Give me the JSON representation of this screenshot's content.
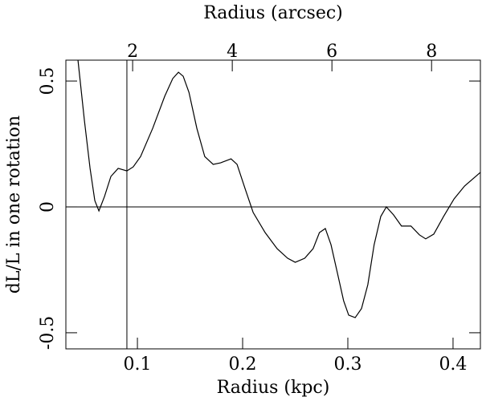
{
  "chart_data": {
    "type": "line",
    "xlabel": "Radius (kpc)",
    "x2label": "Radius (arcsec)",
    "ylabel": "dL/L in one rotation",
    "x": [
      0.0435,
      0.0496,
      0.055,
      0.0595,
      0.0634,
      0.0687,
      0.0748,
      0.0817,
      0.09,
      0.096,
      0.103,
      0.1145,
      0.126,
      0.1336,
      0.139,
      0.1435,
      0.149,
      0.1565,
      0.164,
      0.172,
      0.179,
      0.189,
      0.1947,
      0.2023,
      0.21,
      0.2214,
      0.2328,
      0.2428,
      0.25,
      0.259,
      0.267,
      0.273,
      0.2786,
      0.284,
      0.29,
      0.296,
      0.3008,
      0.307,
      0.313,
      0.319,
      0.325,
      0.3313,
      0.3366,
      0.3435,
      0.351,
      0.36,
      0.368,
      0.374,
      0.3817,
      0.391,
      0.401,
      0.411,
      0.426
    ],
    "values": [
      0.583,
      0.344,
      0.153,
      0.025,
      -0.016,
      0.041,
      0.121,
      0.153,
      0.143,
      0.159,
      0.2,
      0.312,
      0.44,
      0.51,
      0.535,
      0.519,
      0.455,
      0.312,
      0.2,
      0.169,
      0.175,
      0.191,
      0.169,
      0.073,
      -0.022,
      -0.102,
      -0.166,
      -0.204,
      -0.22,
      -0.204,
      -0.166,
      -0.102,
      -0.086,
      -0.15,
      -0.261,
      -0.373,
      -0.43,
      -0.44,
      -0.404,
      -0.309,
      -0.15,
      -0.038,
      0,
      -0.032,
      -0.076,
      -0.076,
      -0.111,
      -0.127,
      -0.108,
      -0.038,
      0.032,
      0.083,
      0.137
    ],
    "color": "#000000",
    "xlim": [
      0.032,
      0.426
    ],
    "xticks": [
      0.1,
      0.2,
      0.3,
      0.4
    ],
    "x2lim": [
      0.66,
      8.98
    ],
    "x2ticks": [
      2,
      4,
      6,
      8
    ],
    "ylim": [
      -0.564,
      0.583
    ],
    "yticks": [
      -0.5,
      0,
      0.5
    ],
    "hlines": [
      0
    ],
    "vlines": [
      0.09
    ]
  }
}
